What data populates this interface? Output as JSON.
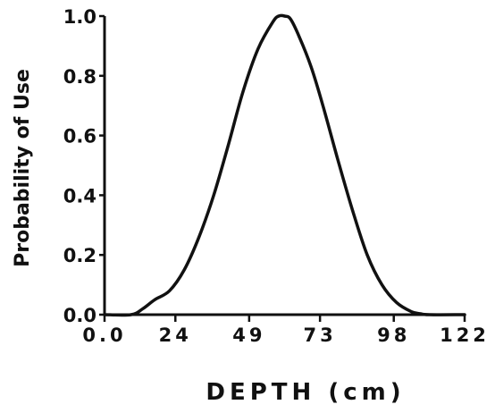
{
  "chart_data": {
    "type": "line",
    "title": "",
    "xlabel": "DEPTH (cm)",
    "ylabel": "Probability of Use",
    "xlim": [
      0,
      122
    ],
    "ylim": [
      0,
      1.0
    ],
    "x_ticks": [
      0,
      24,
      49,
      73,
      98,
      122
    ],
    "x_tick_labels": [
      "0.0",
      "24",
      "49",
      "73",
      "98",
      "122"
    ],
    "y_ticks": [
      0,
      0.2,
      0.4,
      0.6,
      0.8,
      1.0
    ],
    "y_tick_labels": [
      "0.0",
      "0.2",
      "0.4",
      "0.6",
      "0.8",
      "1.0"
    ],
    "grid": false,
    "series": [
      {
        "x": [
          0,
          9,
          13,
          17,
          22,
          27,
          32,
          37,
          42,
          47,
          52,
          57,
          59,
          61,
          63,
          66,
          70,
          74,
          79,
          84,
          89,
          94,
          99,
          104,
          107,
          110,
          122
        ],
        "y": [
          0,
          0,
          0.02,
          0.05,
          0.08,
          0.15,
          0.26,
          0.4,
          0.57,
          0.75,
          0.89,
          0.98,
          1.0,
          1.0,
          0.99,
          0.93,
          0.83,
          0.7,
          0.52,
          0.35,
          0.2,
          0.1,
          0.04,
          0.01,
          0.003,
          0,
          0
        ]
      }
    ]
  }
}
